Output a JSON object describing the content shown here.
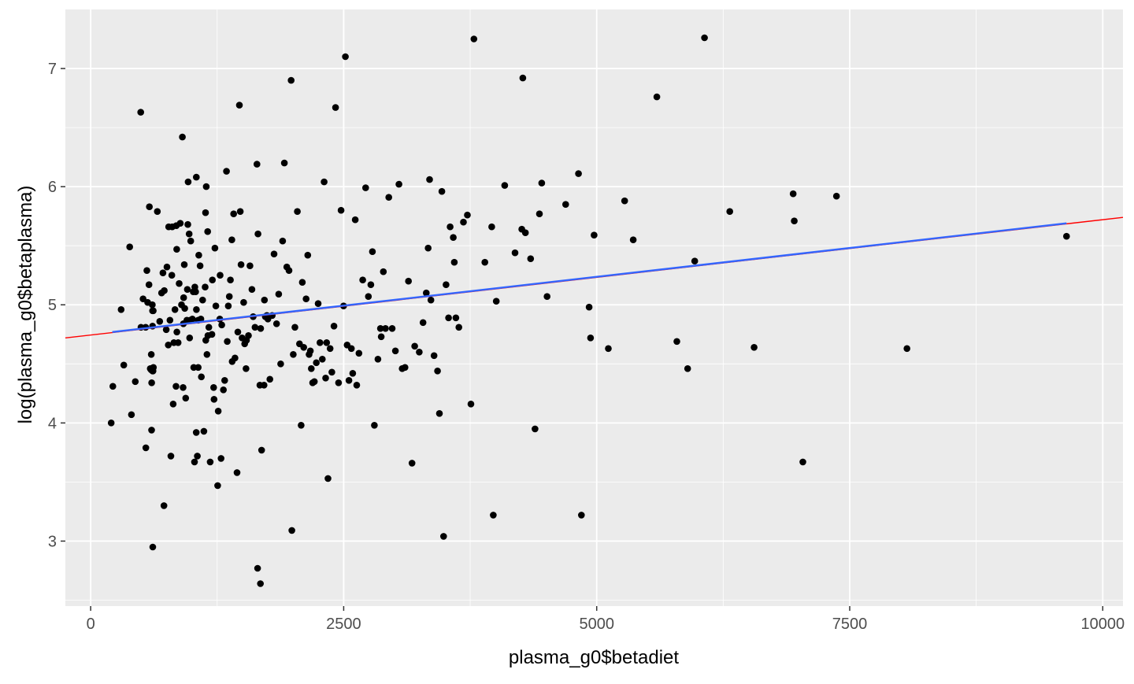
{
  "chart_data": {
    "type": "scatter",
    "title": "",
    "xlabel": "plasma_g0$betadiet",
    "ylabel": "log(plasma_g0$betaplasma)",
    "xlim": [
      -250,
      10200
    ],
    "ylim": [
      2.45,
      7.5
    ],
    "x_ticks": [
      0,
      2500,
      5000,
      7500,
      10000
    ],
    "x_tick_labels": [
      "0",
      "2500",
      "5000",
      "7500",
      "10000"
    ],
    "y_ticks": [
      3,
      4,
      5,
      6,
      7
    ],
    "y_tick_labels": [
      "3",
      "4",
      "5",
      "6",
      "7"
    ],
    "grid": true,
    "colors": {
      "panel_bg": "#EBEBEB",
      "grid": "#FFFFFF",
      "points": "#000000",
      "line_red": "#FF0000",
      "line_blue": "#3366FF"
    },
    "lines": [
      {
        "color": "red",
        "x": [
          -250,
          10200
        ],
        "y": [
          4.72,
          5.74
        ]
      },
      {
        "color": "blue",
        "x": [
          214,
          9642
        ],
        "y": [
          4.77,
          5.69
        ]
      }
    ],
    "points": [
      [
        203,
        4.0
      ],
      [
        219,
        4.31
      ],
      [
        301,
        4.96
      ],
      [
        327,
        4.49
      ],
      [
        386,
        5.49
      ],
      [
        403,
        4.07
      ],
      [
        441,
        4.35
      ],
      [
        495,
        6.63
      ],
      [
        497,
        4.81
      ],
      [
        518,
        5.05
      ],
      [
        544,
        4.81
      ],
      [
        545,
        3.79
      ],
      [
        555,
        5.29
      ],
      [
        563,
        5.02
      ],
      [
        576,
        5.17
      ],
      [
        580,
        5.83
      ],
      [
        589,
        4.46
      ],
      [
        597,
        4.45
      ],
      [
        599,
        4.58
      ],
      [
        602,
        3.94
      ],
      [
        603,
        4.34
      ],
      [
        609,
        5.0
      ],
      [
        611,
        4.95
      ],
      [
        611,
        4.82
      ],
      [
        612,
        4.44
      ],
      [
        613,
        4.44
      ],
      [
        614,
        4.46
      ],
      [
        614,
        2.95
      ],
      [
        616,
        4.44
      ],
      [
        618,
        4.95
      ],
      [
        620,
        4.47
      ],
      [
        659,
        5.79
      ],
      [
        682,
        4.86
      ],
      [
        701,
        5.1
      ],
      [
        714,
        5.27
      ],
      [
        724,
        3.3
      ],
      [
        727,
        5.12
      ],
      [
        747,
        4.79
      ],
      [
        754,
        5.32
      ],
      [
        767,
        4.66
      ],
      [
        771,
        5.66
      ],
      [
        783,
        4.87
      ],
      [
        793,
        3.72
      ],
      [
        802,
        5.25
      ],
      [
        806,
        5.66
      ],
      [
        815,
        4.16
      ],
      [
        822,
        4.68
      ],
      [
        833,
        4.96
      ],
      [
        843,
        4.31
      ],
      [
        846,
        5.67
      ],
      [
        850,
        5.47
      ],
      [
        852,
        4.77
      ],
      [
        864,
        4.68
      ],
      [
        874,
        5.18
      ],
      [
        885,
        5.69
      ],
      [
        898,
        5.0
      ],
      [
        906,
        6.42
      ],
      [
        913,
        4.3
      ],
      [
        916,
        4.84
      ],
      [
        919,
        5.06
      ],
      [
        925,
        5.34
      ],
      [
        930,
        4.97
      ],
      [
        939,
        4.21
      ],
      [
        951,
        4.87
      ],
      [
        955,
        5.13
      ],
      [
        960,
        5.68
      ],
      [
        963,
        6.04
      ],
      [
        973,
        5.6
      ],
      [
        978,
        4.72
      ],
      [
        983,
        4.87
      ],
      [
        989,
        5.54
      ],
      [
        1005,
        4.88
      ],
      [
        1014,
        5.11
      ],
      [
        1018,
        4.47
      ],
      [
        1026,
        3.67
      ],
      [
        1029,
        5.15
      ],
      [
        1037,
        5.11
      ],
      [
        1043,
        3.92
      ],
      [
        1044,
        6.08
      ],
      [
        1045,
        4.96
      ],
      [
        1054,
        3.72
      ],
      [
        1062,
        4.87
      ],
      [
        1063,
        4.47
      ],
      [
        1068,
        5.42
      ],
      [
        1081,
        5.33
      ],
      [
        1089,
        4.88
      ],
      [
        1094,
        4.39
      ],
      [
        1106,
        5.04
      ],
      [
        1119,
        3.93
      ],
      [
        1131,
        5.15
      ],
      [
        1135,
        5.78
      ],
      [
        1137,
        4.7
      ],
      [
        1142,
        6.0
      ],
      [
        1149,
        4.58
      ],
      [
        1156,
        5.62
      ],
      [
        1158,
        4.74
      ],
      [
        1168,
        4.81
      ],
      [
        1181,
        3.67
      ],
      [
        1198,
        4.75
      ],
      [
        1203,
        5.21
      ],
      [
        1215,
        4.3
      ],
      [
        1219,
        4.2
      ],
      [
        1228,
        5.48
      ],
      [
        1237,
        4.99
      ],
      [
        1255,
        3.47
      ],
      [
        1260,
        4.1
      ],
      [
        1276,
        4.88
      ],
      [
        1279,
        5.25
      ],
      [
        1288,
        3.7
      ],
      [
        1295,
        4.83
      ],
      [
        1312,
        4.28
      ],
      [
        1324,
        4.36
      ],
      [
        1342,
        6.13
      ],
      [
        1350,
        4.69
      ],
      [
        1360,
        4.99
      ],
      [
        1370,
        5.07
      ],
      [
        1381,
        5.21
      ],
      [
        1395,
        5.55
      ],
      [
        1398,
        4.52
      ],
      [
        1413,
        5.77
      ],
      [
        1426,
        4.55
      ],
      [
        1446,
        3.58
      ],
      [
        1454,
        4.77
      ],
      [
        1470,
        6.69
      ],
      [
        1478,
        5.79
      ],
      [
        1486,
        5.34
      ],
      [
        1496,
        4.72
      ],
      [
        1512,
        5.02
      ],
      [
        1522,
        4.67
      ],
      [
        1535,
        4.46
      ],
      [
        1540,
        4.7
      ],
      [
        1559,
        4.74
      ],
      [
        1574,
        5.33
      ],
      [
        1593,
        5.13
      ],
      [
        1606,
        4.9
      ],
      [
        1624,
        4.81
      ],
      [
        1643,
        6.19
      ],
      [
        1649,
        2.77
      ],
      [
        1653,
        5.6
      ],
      [
        1672,
        4.32
      ],
      [
        1677,
        2.64
      ],
      [
        1680,
        4.8
      ],
      [
        1689,
        3.77
      ],
      [
        1713,
        4.32
      ],
      [
        1717,
        5.04
      ],
      [
        1726,
        4.9
      ],
      [
        1741,
        4.91
      ],
      [
        1751,
        4.88
      ],
      [
        1771,
        4.37
      ],
      [
        1794,
        4.91
      ],
      [
        1812,
        5.43
      ],
      [
        1837,
        4.84
      ],
      [
        1858,
        5.09
      ],
      [
        1877,
        4.5
      ],
      [
        1897,
        5.54
      ],
      [
        1914,
        6.2
      ],
      [
        1938,
        5.32
      ],
      [
        1960,
        5.29
      ],
      [
        1981,
        6.9
      ],
      [
        1988,
        3.09
      ],
      [
        2002,
        4.58
      ],
      [
        2018,
        4.81
      ],
      [
        2042,
        5.79
      ],
      [
        2063,
        4.67
      ],
      [
        2080,
        3.98
      ],
      [
        2091,
        5.19
      ],
      [
        2105,
        4.64
      ],
      [
        2129,
        5.05
      ],
      [
        2145,
        5.42
      ],
      [
        2158,
        4.58
      ],
      [
        2171,
        4.61
      ],
      [
        2180,
        4.46
      ],
      [
        2193,
        4.34
      ],
      [
        2210,
        4.35
      ],
      [
        2230,
        4.51
      ],
      [
        2248,
        5.01
      ],
      [
        2266,
        4.68
      ],
      [
        2289,
        4.54
      ],
      [
        2307,
        6.04
      ],
      [
        2322,
        4.38
      ],
      [
        2332,
        4.68
      ],
      [
        2345,
        3.53
      ],
      [
        2366,
        4.63
      ],
      [
        2383,
        4.43
      ],
      [
        2404,
        4.82
      ],
      [
        2420,
        6.67
      ],
      [
        2449,
        4.34
      ],
      [
        2474,
        5.8
      ],
      [
        2499,
        4.99
      ],
      [
        2517,
        7.1
      ],
      [
        2534,
        4.66
      ],
      [
        2552,
        4.36
      ],
      [
        2576,
        4.63
      ],
      [
        2589,
        4.42
      ],
      [
        2614,
        5.72
      ],
      [
        2629,
        4.32
      ],
      [
        2651,
        4.59
      ],
      [
        2688,
        5.21
      ],
      [
        2717,
        5.99
      ],
      [
        2744,
        5.07
      ],
      [
        2768,
        5.17
      ],
      [
        2784,
        5.45
      ],
      [
        2803,
        3.98
      ],
      [
        2838,
        4.54
      ],
      [
        2863,
        4.8
      ],
      [
        2871,
        4.73
      ],
      [
        2892,
        5.28
      ],
      [
        2913,
        4.8
      ],
      [
        2946,
        5.91
      ],
      [
        2979,
        4.8
      ],
      [
        3011,
        4.61
      ],
      [
        3046,
        6.02
      ],
      [
        3078,
        4.46
      ],
      [
        3106,
        4.47
      ],
      [
        3140,
        5.2
      ],
      [
        3175,
        3.66
      ],
      [
        3202,
        4.65
      ],
      [
        3247,
        4.6
      ],
      [
        3284,
        4.85
      ],
      [
        3316,
        5.1
      ],
      [
        3335,
        5.48
      ],
      [
        3349,
        6.06
      ],
      [
        3362,
        5.04
      ],
      [
        3393,
        4.57
      ],
      [
        3427,
        4.44
      ],
      [
        3446,
        4.08
      ],
      [
        3470,
        5.96
      ],
      [
        3487,
        3.04
      ],
      [
        3511,
        5.17
      ],
      [
        3536,
        4.89
      ],
      [
        3552,
        5.66
      ],
      [
        3583,
        5.57
      ],
      [
        3593,
        5.36
      ],
      [
        3609,
        4.89
      ],
      [
        3638,
        4.81
      ],
      [
        3683,
        5.7
      ],
      [
        3722,
        5.76
      ],
      [
        3757,
        4.16
      ],
      [
        3787,
        7.25
      ],
      [
        3895,
        5.36
      ],
      [
        3963,
        5.66
      ],
      [
        3978,
        3.22
      ],
      [
        4008,
        5.03
      ],
      [
        4091,
        6.01
      ],
      [
        4193,
        5.44
      ],
      [
        4260,
        5.64
      ],
      [
        4270,
        6.92
      ],
      [
        4296,
        5.61
      ],
      [
        4347,
        5.39
      ],
      [
        4391,
        3.95
      ],
      [
        4434,
        5.77
      ],
      [
        4457,
        6.03
      ],
      [
        4510,
        5.07
      ],
      [
        4693,
        5.85
      ],
      [
        4820,
        6.11
      ],
      [
        4849,
        3.22
      ],
      [
        4925,
        4.98
      ],
      [
        4939,
        4.72
      ],
      [
        4974,
        5.59
      ],
      [
        5115,
        4.63
      ],
      [
        5276,
        5.88
      ],
      [
        5361,
        5.55
      ],
      [
        5594,
        6.76
      ],
      [
        5792,
        4.69
      ],
      [
        5899,
        4.46
      ],
      [
        5969,
        5.37
      ],
      [
        6065,
        7.26
      ],
      [
        6315,
        5.79
      ],
      [
        6555,
        4.64
      ],
      [
        6941,
        5.94
      ],
      [
        6952,
        5.71
      ],
      [
        7037,
        3.67
      ],
      [
        7369,
        5.92
      ],
      [
        8066,
        4.63
      ],
      [
        9642,
        5.58
      ]
    ]
  }
}
